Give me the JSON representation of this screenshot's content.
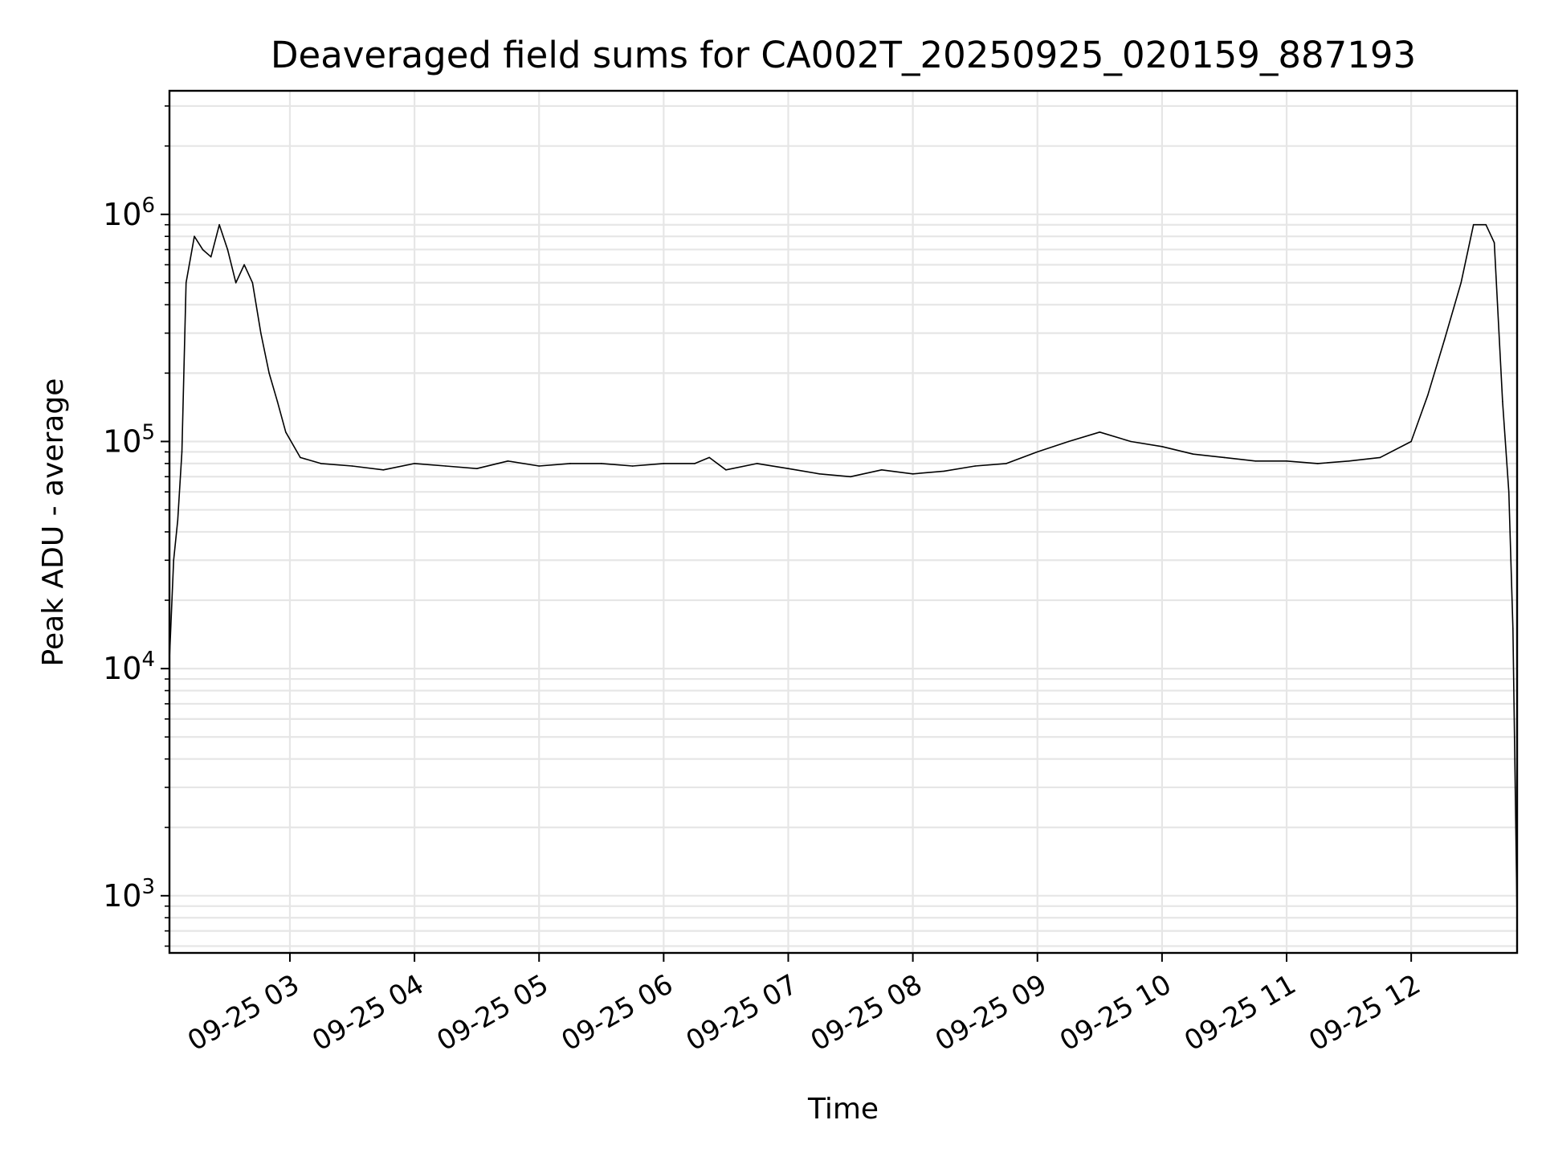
{
  "chart_data": {
    "type": "line",
    "title": "Deaveraged field sums for CA002T_20250925_020159_887193",
    "xlabel": "Time",
    "ylabel": "Peak ADU - average",
    "yscale": "log",
    "ylim": [
      560,
      3500000
    ],
    "xlim": [
      "09-25 02:02",
      "09-25 12:51"
    ],
    "grid": true,
    "line_color": "#000000",
    "x_ticks": [
      "09-25 03",
      "09-25 04",
      "09-25 05",
      "09-25 06",
      "09-25 07",
      "09-25 08",
      "09-25 09",
      "09-25 10",
      "09-25 11",
      "09-25 12"
    ],
    "y_ticks": [
      {
        "base": "10",
        "exp": "3",
        "value": 1000
      },
      {
        "base": "10",
        "exp": "4",
        "value": 10000
      },
      {
        "base": "10",
        "exp": "5",
        "value": 100000
      },
      {
        "base": "10",
        "exp": "6",
        "value": 1000000
      }
    ],
    "series": [
      {
        "x": [
          "09-25 02:02",
          "09-25 02:04",
          "09-25 02:06",
          "09-25 02:08",
          "09-25 02:10",
          "09-25 02:14",
          "09-25 02:18",
          "09-25 02:22",
          "09-25 02:26",
          "09-25 02:30",
          "09-25 02:34",
          "09-25 02:38",
          "09-25 02:42",
          "09-25 02:46",
          "09-25 02:50",
          "09-25 02:54",
          "09-25 02:58",
          "09-25 03:05",
          "09-25 03:15",
          "09-25 03:30",
          "09-25 03:45",
          "09-25 04:00",
          "09-25 04:15",
          "09-25 04:30",
          "09-25 04:45",
          "09-25 05:00",
          "09-25 05:15",
          "09-25 05:30",
          "09-25 05:45",
          "09-25 06:00",
          "09-25 06:15",
          "09-25 06:22",
          "09-25 06:30",
          "09-25 06:45",
          "09-25 07:00",
          "09-25 07:15",
          "09-25 07:30",
          "09-25 07:45",
          "09-25 08:00",
          "09-25 08:15",
          "09-25 08:30",
          "09-25 08:45",
          "09-25 09:00",
          "09-25 09:15",
          "09-25 09:30",
          "09-25 09:45",
          "09-25 10:00",
          "09-25 10:15",
          "09-25 10:30",
          "09-25 10:45",
          "09-25 11:00",
          "09-25 11:15",
          "09-25 11:30",
          "09-25 11:45",
          "09-25 12:00",
          "09-25 12:08",
          "09-25 12:16",
          "09-25 12:24",
          "09-25 12:30",
          "09-25 12:36",
          "09-25 12:40",
          "09-25 12:44",
          "09-25 12:47",
          "09-25 12:49",
          "09-25 12:51"
        ],
        "y": [
          11000,
          30000,
          45000,
          90000,
          500000,
          800000,
          700000,
          650000,
          900000,
          700000,
          500000,
          600000,
          500000,
          300000,
          200000,
          150000,
          110000,
          85000,
          80000,
          78000,
          75000,
          80000,
          78000,
          76000,
          82000,
          78000,
          80000,
          80000,
          78000,
          80000,
          80000,
          85000,
          75000,
          80000,
          76000,
          72000,
          70000,
          75000,
          72000,
          74000,
          78000,
          80000,
          90000,
          100000,
          110000,
          100000,
          95000,
          88000,
          85000,
          82000,
          82000,
          80000,
          82000,
          85000,
          100000,
          160000,
          280000,
          500000,
          900000,
          900000,
          750000,
          150000,
          60000,
          15000,
          800
        ]
      }
    ]
  }
}
